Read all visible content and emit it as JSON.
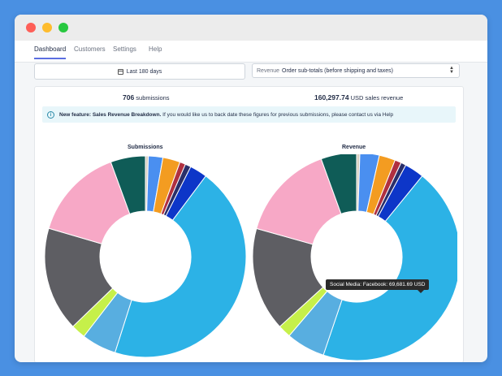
{
  "tabs": [
    "Dashboard",
    "Customers",
    "Settings",
    "Help"
  ],
  "date_range": "Last 180 days",
  "revenue_select": {
    "label": "Revenue",
    "value": "Order sub-totals (before shipping and taxes)"
  },
  "stats": {
    "submissions_value": "706",
    "submissions_label": "submissions",
    "revenue_value": "160,297.74",
    "revenue_label": "USD sales revenue"
  },
  "banner": {
    "bold": "New feature: Sales Revenue Breakdown.",
    "text": "If you would like us to back date these figures for previous submissions, please contact us via Help"
  },
  "tooltip": "Social Media: Facebook: 69,681.69 USD",
  "colors": {
    "accent": "#5b6ee1",
    "info": "#2a8aa8"
  },
  "chart_data": [
    {
      "type": "pie",
      "title": "Submissions",
      "series": [
        {
          "values": [
            0.5,
            2.5,
            3,
            1,
            1,
            3,
            48,
            6,
            2.5,
            18,
            16,
            6
          ]
        }
      ],
      "colors": [
        "#d8d0c0",
        "#4a8ff0",
        "#f39c21",
        "#b03040",
        "#2a2f6a",
        "#0d36c8",
        "#2cb2e6",
        "#58aee0",
        "#c6f04a",
        "#5e5e63",
        "#f7a8c6",
        "#0f5c57"
      ]
    },
    {
      "type": "pie",
      "title": "Revenue",
      "series": [
        {
          "values": [
            0.5,
            3,
            2.5,
            1,
            0.8,
            3,
            44,
            6,
            2,
            16,
            15,
            5.5
          ]
        }
      ],
      "colors": [
        "#d8d0c0",
        "#4a8ff0",
        "#f39c21",
        "#b03040",
        "#2a2f6a",
        "#0d36c8",
        "#2cb2e6",
        "#58aee0",
        "#c6f04a",
        "#5e5e63",
        "#f7a8c6",
        "#0f5c57"
      ]
    }
  ]
}
